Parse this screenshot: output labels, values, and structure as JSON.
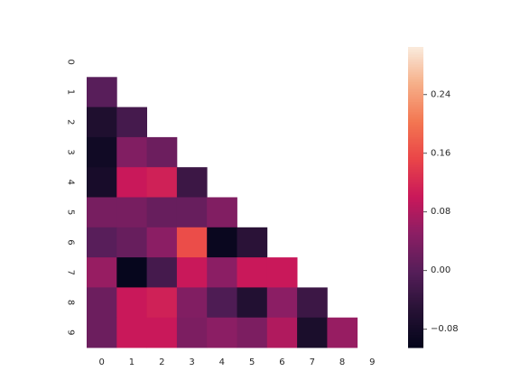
{
  "chart_data": {
    "type": "heatmap",
    "title": "",
    "xlabel": "",
    "ylabel": "",
    "x_tick_labels": [
      "0",
      "1",
      "2",
      "3",
      "4",
      "5",
      "6",
      "7",
      "8",
      "9"
    ],
    "y_tick_labels": [
      "0",
      "1",
      "2",
      "3",
      "4",
      "5",
      "6",
      "7",
      "8",
      "9"
    ],
    "mask": "upper-triangle-including-diagonal",
    "color_range": [
      -0.105,
      0.305
    ],
    "colormap": "rocket",
    "colorbar_ticks": [
      {
        "value": -0.08,
        "label": "−0.08"
      },
      {
        "value": 0.0,
        "label": "0.00"
      },
      {
        "value": 0.08,
        "label": "0.08"
      },
      {
        "value": 0.16,
        "label": "0.16"
      },
      {
        "value": 0.24,
        "label": "0.24"
      }
    ],
    "values": [
      [
        null,
        null,
        null,
        null,
        null,
        null,
        null,
        null,
        null,
        null
      ],
      [
        0.0,
        null,
        null,
        null,
        null,
        null,
        null,
        null,
        null,
        null
      ],
      [
        -0.065,
        -0.02,
        null,
        null,
        null,
        null,
        null,
        null,
        null,
        null
      ],
      [
        -0.085,
        0.04,
        0.02,
        null,
        null,
        null,
        null,
        null,
        null,
        null
      ],
      [
        -0.075,
        0.1,
        0.11,
        -0.03,
        null,
        null,
        null,
        null,
        null,
        null
      ],
      [
        0.03,
        0.03,
        0.015,
        0.015,
        0.04,
        null,
        null,
        null,
        null,
        null
      ],
      [
        0.0,
        0.015,
        0.05,
        0.16,
        -0.095,
        -0.05,
        null,
        null,
        null,
        null
      ],
      [
        0.06,
        -0.1,
        -0.02,
        0.1,
        0.05,
        0.1,
        0.1,
        null,
        null,
        null
      ],
      [
        0.02,
        0.1,
        0.11,
        0.04,
        -0.01,
        -0.06,
        0.05,
        -0.03,
        null,
        null
      ],
      [
        0.02,
        0.1,
        0.1,
        0.035,
        0.05,
        0.035,
        0.08,
        -0.07,
        0.06,
        null
      ]
    ]
  }
}
